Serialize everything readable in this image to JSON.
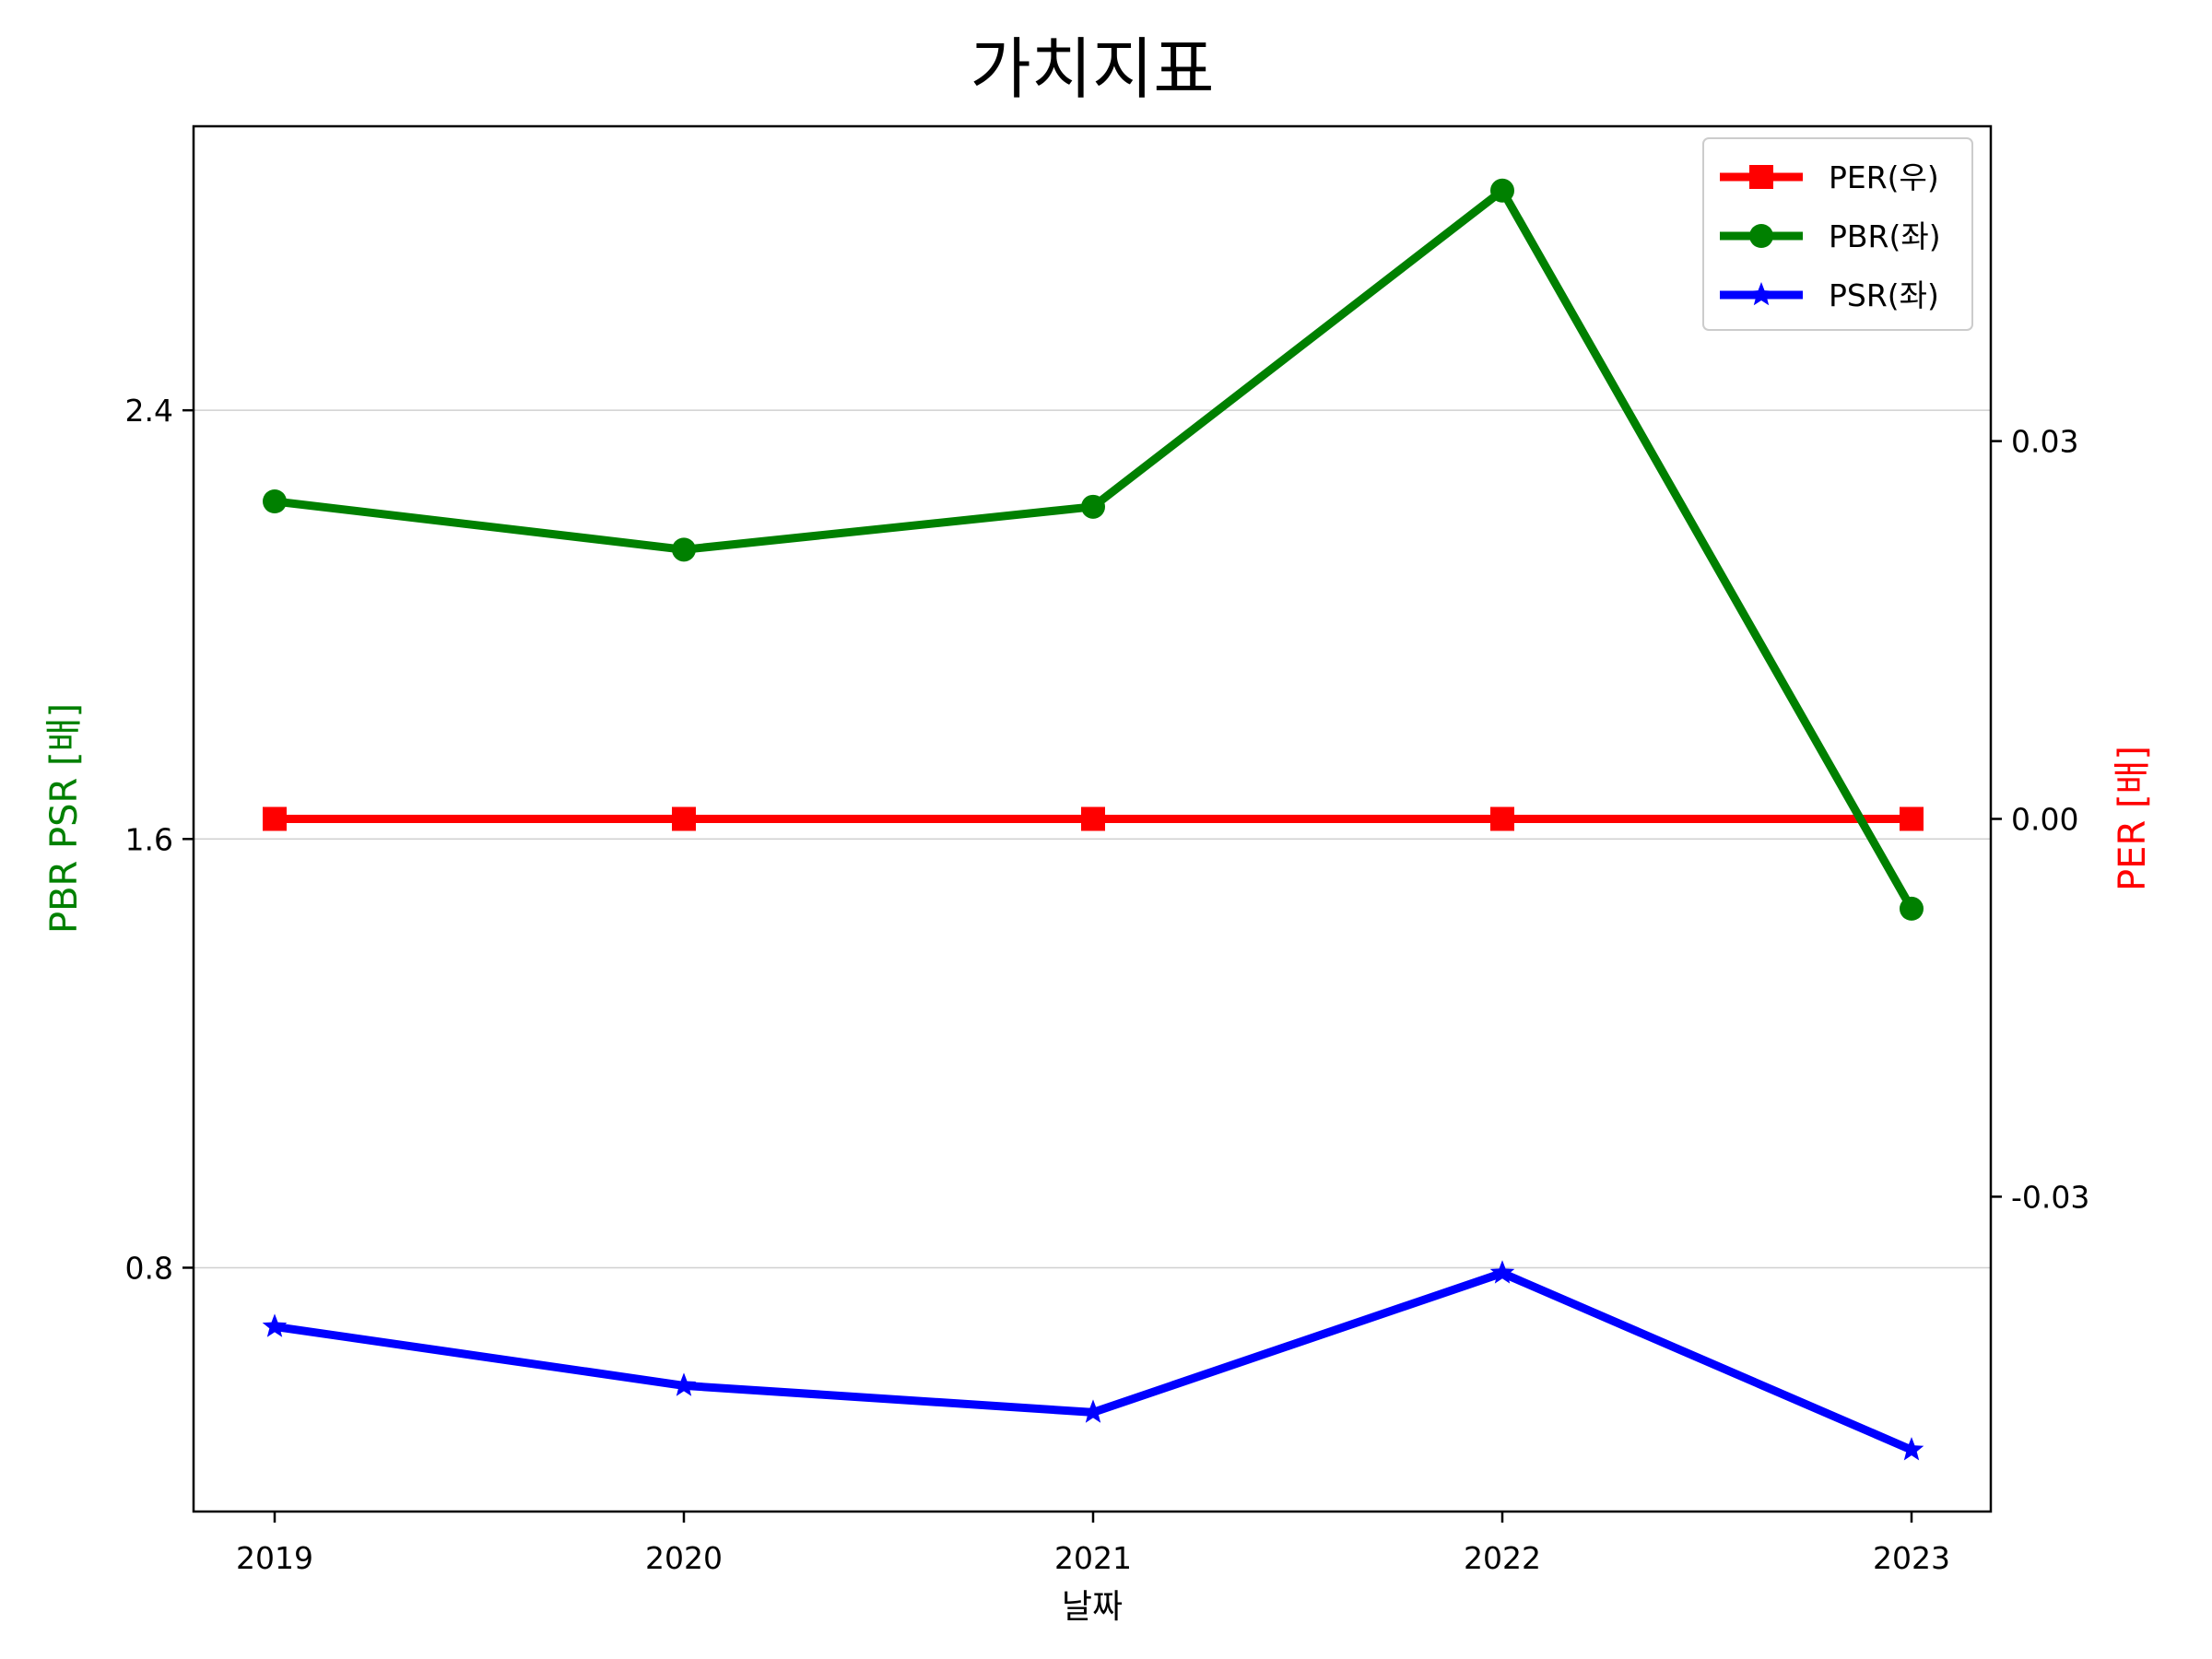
{
  "chart_data": {
    "type": "line",
    "title": "가치지표",
    "xlabel": "날짜",
    "ylabel_left": "PBR PSR [배]",
    "ylabel_right": "PER [배]",
    "x": [
      "2019",
      "2020",
      "2021",
      "2022",
      "2023"
    ],
    "ylim_left": [
      0.345,
      2.93
    ],
    "yticks_left": [
      0.8,
      1.6,
      2.4
    ],
    "ytick_labels_left": [
      "0.8",
      "1.6",
      "2.4"
    ],
    "ylim_right": [
      -0.055,
      0.055
    ],
    "yticks_right": [
      -0.03,
      0.0,
      0.03
    ],
    "ytick_labels_right": [
      "-0.03",
      "0.00",
      "0.03"
    ],
    "grid": "horizontal",
    "legend_position": "top-right",
    "series": [
      {
        "name": "PER(우)",
        "axis": "right",
        "marker": "square",
        "color": "#ff0000",
        "values": [
          0,
          0,
          0,
          0,
          0
        ]
      },
      {
        "name": "PBR(좌)",
        "axis": "left",
        "marker": "circle",
        "color": "#008000",
        "values": [
          2.23,
          2.14,
          2.22,
          2.81,
          1.47
        ]
      },
      {
        "name": "PSR(좌)",
        "axis": "left",
        "marker": "star",
        "color": "#0000ff",
        "values": [
          0.69,
          0.58,
          0.53,
          0.79,
          0.46
        ]
      }
    ]
  }
}
